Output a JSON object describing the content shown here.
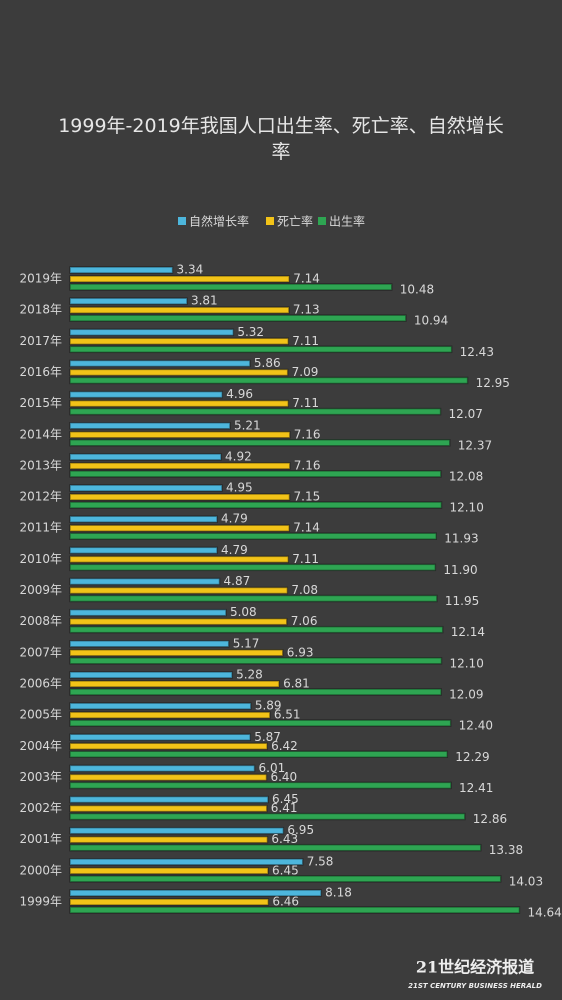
{
  "chart_data": {
    "type": "bar",
    "orientation": "horizontal",
    "title": "1999年-2019年我国人口出生率、死亡率、自然增长率",
    "categories": [
      "2019年",
      "2018年",
      "2017年",
      "2016年",
      "2015年",
      "2014年",
      "2013年",
      "2012年",
      "2011年",
      "2010年",
      "2009年",
      "2008年",
      "2007年",
      "2006年",
      "2005年",
      "2004年",
      "2003年",
      "2002年",
      "2001年",
      "2000年",
      "1999年"
    ],
    "series": [
      {
        "name": "自然增长率",
        "color": "#4db6dc",
        "values": [
          3.34,
          3.81,
          5.32,
          5.86,
          4.96,
          5.21,
          4.92,
          4.95,
          4.79,
          4.79,
          4.87,
          5.08,
          5.17,
          5.28,
          5.89,
          5.87,
          6.01,
          6.45,
          6.95,
          7.58,
          8.18
        ],
        "value_labels": [
          "3.34",
          "3.81",
          "5.32",
          "5.86",
          "4.96",
          "5.21",
          "4.92",
          "4.95",
          "4.79",
          "4.79",
          "4.87",
          "5.08",
          "5.17",
          "5.28",
          "5.89",
          "5.87",
          "6.01",
          "6.45",
          "6.95",
          "7.58",
          "8.18"
        ]
      },
      {
        "name": "死亡率",
        "color": "#f2c318",
        "values": [
          7.14,
          7.13,
          7.11,
          7.09,
          7.11,
          7.16,
          7.16,
          7.15,
          7.14,
          7.11,
          7.08,
          7.06,
          6.93,
          6.81,
          6.51,
          6.42,
          6.4,
          6.41,
          6.43,
          6.45,
          6.46
        ],
        "value_labels": [
          "7.14",
          "7.13",
          "7.11",
          "7.09",
          "7.11",
          "7.16",
          "7.16",
          "7.15",
          "7.14",
          "7.11",
          "7.08",
          "7.06",
          "6.93",
          "6.81",
          "6.51",
          "6.42",
          "6.40",
          "6.41",
          "6.43",
          "6.45",
          "6.46"
        ]
      },
      {
        "name": "出生率",
        "color": "#2ea552",
        "values": [
          10.48,
          10.94,
          12.43,
          12.95,
          12.07,
          12.37,
          12.08,
          12.1,
          11.93,
          11.9,
          11.95,
          12.14,
          12.1,
          12.09,
          12.4,
          12.29,
          12.41,
          12.86,
          13.38,
          14.03,
          14.64
        ],
        "value_labels": [
          "10.48",
          "10.94",
          "12.43",
          "12.95",
          "12.07",
          "12.37",
          "12.08",
          "12.10",
          "11.93",
          "11.90",
          "11.95",
          "12.14",
          "12.10",
          "12.09",
          "12.40",
          "12.29",
          "12.41",
          "12.86",
          "13.38",
          "14.03",
          "14.64"
        ]
      }
    ],
    "legend": "top"
  },
  "watermark": {
    "name": "21世纪经济报道",
    "subtitle": "21ST CENTURY BUSINESS HERALD"
  }
}
